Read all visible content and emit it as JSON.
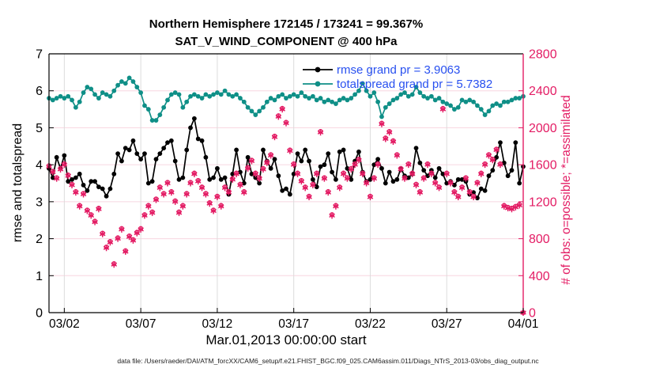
{
  "figure": {
    "footer": "data file: /Users/raeder/DAI/ATM_forcXX/CAM6_setup/f.e21.FHIST_BGC.f09_025.CAM6assim.011/Diags_NTrS_2013-03/obs_diag_output.nc"
  },
  "chart_data": {
    "type": "line",
    "title": "Northern Hemisphere 172145 / 173241 = 99.367%",
    "subtitle": "SAT_V_WIND_COMPONENT @ 400 hPa",
    "xlabel": "Mar.01,2013 00:00:00 start",
    "ylabel_left": "rmse and totalspread",
    "ylabel_right": "# of obs: o=possible; *=assimilated",
    "xlim": [
      1,
      32
    ],
    "ylim_left": [
      0,
      7
    ],
    "ylim_right": [
      0,
      2800
    ],
    "grid": true,
    "legend_position": "top-right-inside",
    "x_ticks": [
      {
        "day": 2,
        "label": "03/02"
      },
      {
        "day": 7,
        "label": "03/07"
      },
      {
        "day": 12,
        "label": "03/12"
      },
      {
        "day": 17,
        "label": "03/17"
      },
      {
        "day": 22,
        "label": "03/22"
      },
      {
        "day": 27,
        "label": "03/27"
      },
      {
        "day": 32,
        "label": "04/01"
      }
    ],
    "y_ticks_left": [
      0,
      1,
      2,
      3,
      4,
      5,
      6,
      7
    ],
    "y_ticks_right": [
      0,
      400,
      800,
      1200,
      1600,
      2000,
      2400,
      2800
    ],
    "x_start": 1,
    "x_step": 0.25,
    "series": [
      {
        "name": "rmse grand pr = 3.9063",
        "color": "#000000",
        "axis": "left",
        "values": [
          3.9,
          3.65,
          4.2,
          3.9,
          4.25,
          3.55,
          3.6,
          3.65,
          3.75,
          3.45,
          3.3,
          3.55,
          3.55,
          3.4,
          3.35,
          3.15,
          3.35,
          3.75,
          4.3,
          4.1,
          4.45,
          4.4,
          4.65,
          4.3,
          4.15,
          4.3,
          3.5,
          3.55,
          4.15,
          4.3,
          4.45,
          4.6,
          4.65,
          4.1,
          3.6,
          3.65,
          4.4,
          5.0,
          5.25,
          4.7,
          4.65,
          4.2,
          3.6,
          3.65,
          3.9,
          3.6,
          3.65,
          3.2,
          3.75,
          4.4,
          3.8,
          3.5,
          4.2,
          3.75,
          3.65,
          3.5,
          4.4,
          4.1,
          3.9,
          4.15,
          3.7,
          3.3,
          3.35,
          3.2,
          3.75,
          4.3,
          4.1,
          4.4,
          4.1,
          3.6,
          3.4,
          3.95,
          4.0,
          4.3,
          3.8,
          3.6,
          4.35,
          4.4,
          3.9,
          3.6,
          4.1,
          4.35,
          3.8,
          3.55,
          3.6,
          4.0,
          4.15,
          3.9,
          3.5,
          3.8,
          3.55,
          3.6,
          3.9,
          3.7,
          3.65,
          3.75,
          4.45,
          4.05,
          3.85,
          3.7,
          3.85,
          3.65,
          3.9,
          3.75,
          3.5,
          3.55,
          3.45,
          3.6,
          3.6,
          3.55,
          3.2,
          3.25,
          3.1,
          3.35,
          3.3,
          3.7,
          3.85,
          4.2,
          4.6,
          4.05,
          3.7,
          3.85,
          4.6,
          3.5,
          3.95
        ]
      },
      {
        "name": "totalspread grand pr = 5.7382",
        "color": "#0f8f87",
        "axis": "left",
        "values": [
          5.8,
          5.75,
          5.8,
          5.85,
          5.8,
          5.85,
          5.75,
          5.55,
          5.7,
          5.95,
          6.1,
          6.05,
          5.9,
          5.8,
          5.95,
          5.9,
          5.85,
          6.0,
          6.15,
          6.25,
          6.2,
          6.35,
          6.25,
          6.1,
          5.95,
          5.6,
          5.5,
          5.2,
          5.2,
          5.35,
          5.55,
          5.75,
          5.9,
          5.95,
          5.9,
          5.55,
          5.7,
          5.85,
          5.9,
          5.85,
          5.8,
          5.9,
          5.85,
          5.9,
          5.95,
          5.9,
          6.0,
          5.9,
          5.85,
          5.9,
          5.8,
          5.7,
          5.55,
          5.45,
          5.35,
          5.45,
          5.55,
          5.7,
          5.8,
          5.75,
          5.85,
          5.9,
          5.8,
          5.85,
          5.9,
          5.85,
          5.95,
          5.85,
          5.8,
          5.85,
          5.75,
          5.8,
          5.7,
          5.75,
          5.7,
          5.65,
          5.75,
          5.8,
          5.75,
          5.8,
          5.9,
          6.0,
          6.2,
          6.0,
          5.85,
          5.95,
          5.7,
          5.3,
          5.55,
          5.65,
          5.75,
          5.8,
          5.9,
          5.95,
          5.85,
          5.9,
          6.1,
          5.95,
          5.85,
          5.8,
          5.85,
          5.75,
          5.8,
          5.7,
          5.65,
          5.6,
          5.5,
          5.55,
          5.75,
          5.7,
          5.75,
          5.7,
          5.6,
          5.5,
          5.35,
          5.45,
          5.6,
          5.65,
          5.6,
          5.7,
          5.7,
          5.75,
          5.8,
          5.8,
          5.85
        ]
      }
    ],
    "scatter": {
      "name": "# of obs",
      "color": "#e31c64",
      "axis": "right",
      "possible": [
        1590,
        1530,
        1460,
        1560,
        1610,
        1490,
        1390,
        1310,
        1160,
        1290,
        1110,
        1060,
        990,
        1130,
        860,
        710,
        770,
        530,
        810,
        910,
        670,
        830,
        790,
        870,
        910,
        1060,
        1160,
        1090,
        1230,
        1360,
        1290,
        1410,
        1310,
        1210,
        1090,
        1160,
        1290,
        1410,
        1510,
        1430,
        1360,
        1290,
        1190,
        1110,
        1260,
        1160,
        1360,
        1310,
        1450,
        1510,
        1390,
        1310,
        1570,
        1650,
        1510,
        1460,
        1560,
        1630,
        1710,
        1910,
        2130,
        2210,
        2060,
        1760,
        1610,
        1510,
        1430,
        1360,
        1260,
        1390,
        1510,
        1960,
        1460,
        1310,
        1060,
        1160,
        1360,
        1510,
        1460,
        1560,
        1610,
        1660,
        1510,
        1410,
        1260,
        1460,
        1610,
        2050,
        1890,
        1960,
        1860,
        1710,
        1560,
        1460,
        1610,
        1510,
        1390,
        1310,
        1460,
        1610,
        1510,
        1410,
        1360,
        2210,
        1510,
        1410,
        1310,
        1260,
        1360,
        1460,
        1310,
        1260,
        1410,
        1510,
        1610,
        1710,
        1660,
        1770,
        1610,
        1160,
        1140,
        1130,
        1150,
        1170,
        0
      ],
      "assimilated": [
        1580,
        1520,
        1450,
        1550,
        1600,
        1480,
        1380,
        1300,
        1150,
        1280,
        1100,
        1050,
        980,
        1120,
        850,
        700,
        760,
        520,
        800,
        900,
        660,
        820,
        780,
        860,
        900,
        1050,
        1150,
        1080,
        1220,
        1350,
        1280,
        1400,
        1300,
        1200,
        1080,
        1150,
        1280,
        1400,
        1500,
        1420,
        1350,
        1280,
        1180,
        1100,
        1250,
        1150,
        1350,
        1300,
        1440,
        1500,
        1380,
        1300,
        1560,
        1640,
        1500,
        1450,
        1550,
        1620,
        1700,
        1900,
        2120,
        2200,
        2050,
        1750,
        1600,
        1500,
        1420,
        1350,
        1250,
        1380,
        1500,
        1950,
        1450,
        1300,
        1050,
        1150,
        1350,
        1500,
        1450,
        1550,
        1600,
        1650,
        1500,
        1400,
        1250,
        1450,
        1600,
        2040,
        1880,
        1950,
        1850,
        1700,
        1550,
        1450,
        1600,
        1500,
        1380,
        1300,
        1450,
        1600,
        1500,
        1400,
        1350,
        2200,
        1500,
        1400,
        1300,
        1250,
        1350,
        1450,
        1300,
        1250,
        1400,
        1500,
        1600,
        1700,
        1650,
        1760,
        1600,
        1150,
        1130,
        1120,
        1140,
        1160,
        0
      ]
    },
    "colors": {
      "right_axis": "#e31c64",
      "left_axis": "#000000",
      "grid_h": "#f8d6e0",
      "grid_v": "#dcdcdc",
      "legend_text": "#2850f0"
    }
  }
}
